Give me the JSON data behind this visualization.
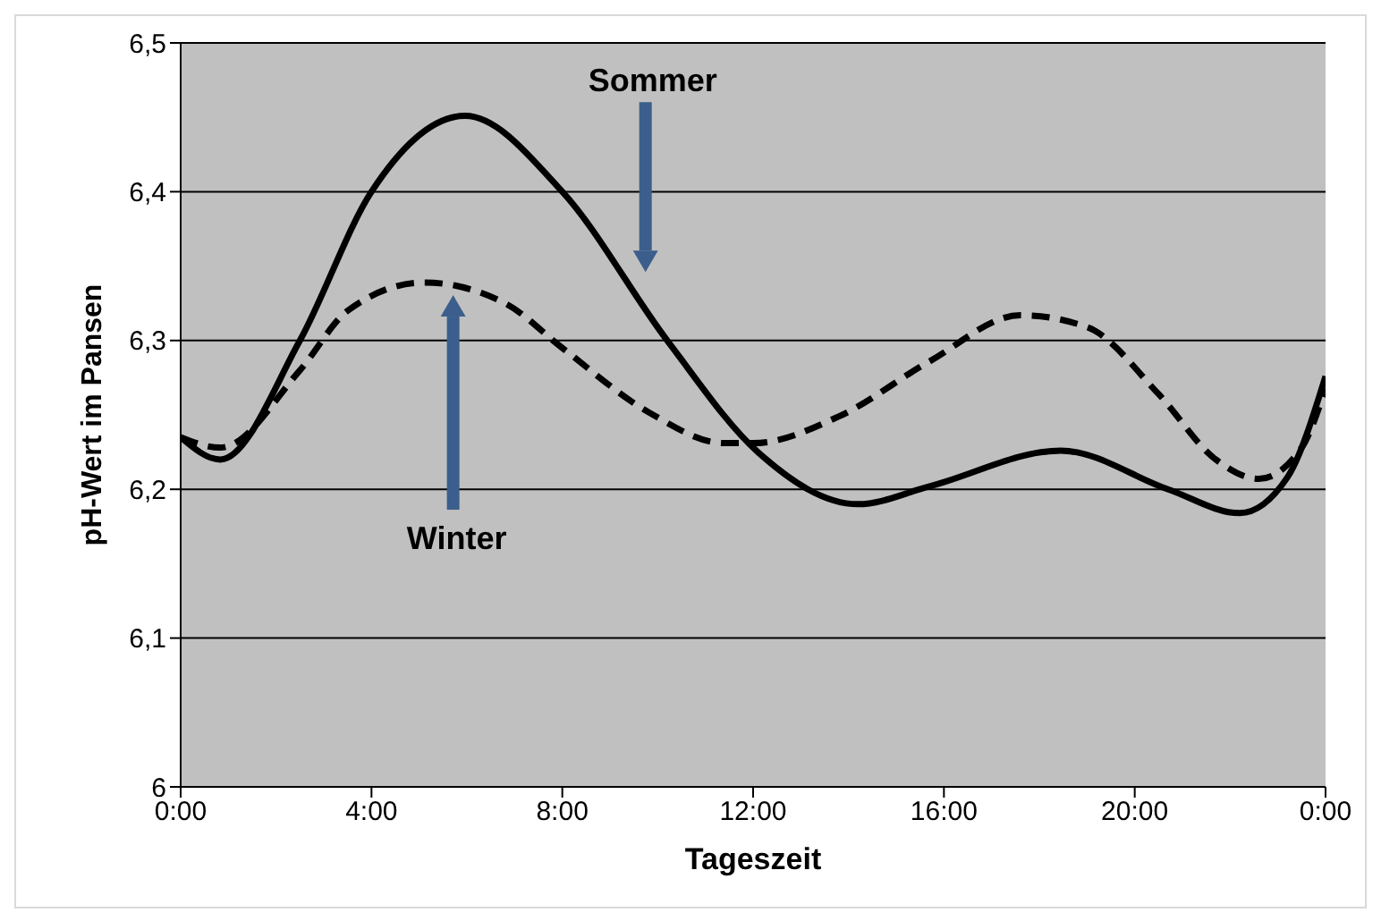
{
  "chart_data": {
    "type": "line",
    "xlabel": "Tageszeit",
    "ylabel": "pH-Wert im Pansen",
    "xlim": [
      0,
      24
    ],
    "xticks": [
      {
        "value": 0,
        "label": "0:00"
      },
      {
        "value": 4,
        "label": "4:00"
      },
      {
        "value": 8,
        "label": "8:00"
      },
      {
        "value": 12,
        "label": "12:00"
      },
      {
        "value": 16,
        "label": "16:00"
      },
      {
        "value": 20,
        "label": "20:00"
      },
      {
        "value": 24,
        "label": "0:00"
      }
    ],
    "ylim": [
      6,
      6.5
    ],
    "yticks": [
      6,
      {
        "value": 6.1,
        "label": "6,1"
      },
      {
        "value": 6.2,
        "label": "6,2"
      },
      {
        "value": 6.3,
        "label": "6,3"
      },
      {
        "value": 6.4,
        "label": "6,4"
      },
      {
        "value": 6.5,
        "label": "6,5"
      }
    ],
    "grid": "y",
    "marker": "none",
    "series": [
      {
        "color": "#000000",
        "line_style": "solid",
        "x": [
          0,
          0.83,
          2.5,
          4.0,
          5.96,
          8.0,
          10.2,
          12.1,
          14.2,
          15.7,
          18.45,
          20.7,
          22.2,
          23.2,
          24
        ],
        "values": [
          6.235,
          6.22,
          6.3,
          6.4,
          6.451,
          6.4,
          6.3,
          6.225,
          6.19,
          6.202,
          6.226,
          6.2,
          6.184,
          6.208,
          6.276
        ]
      },
      {
        "color": "#000000",
        "line_style": "dashed",
        "x": [
          0,
          0.83,
          2.5,
          3.5,
          5.1,
          6.8,
          8.0,
          9.8,
          11.4,
          12.0,
          13.8,
          15.7,
          17.6,
          19.0,
          20.5,
          21.7,
          22.6,
          23.5,
          24
        ],
        "values": [
          6.235,
          6.228,
          6.28,
          6.32,
          6.339,
          6.325,
          6.295,
          6.252,
          6.231,
          6.231,
          6.249,
          6.286,
          6.317,
          6.309,
          6.264,
          6.22,
          6.207,
          6.228,
          6.268
        ]
      }
    ],
    "annotations": [
      "Sommer",
      "Winter"
    ]
  }
}
